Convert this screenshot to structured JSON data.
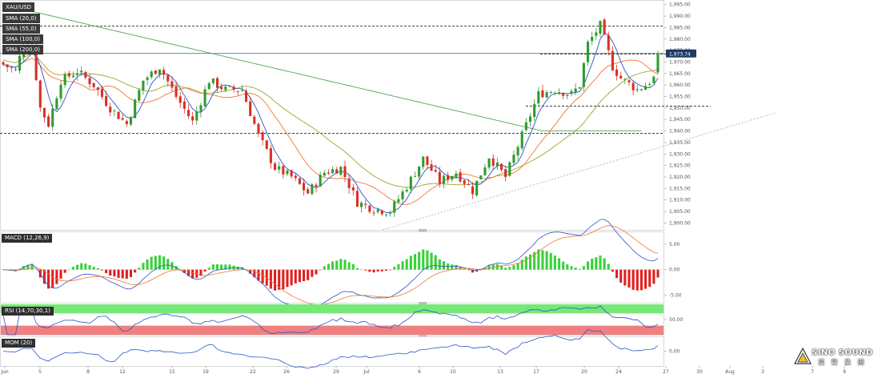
{
  "chart_data": [
    {
      "type": "candlestick",
      "panel": "price",
      "symbol": "XAU/USD",
      "ylim": [
        1897,
        1997
      ],
      "y_ticks": [
        "1,995.00",
        "1,990.00",
        "1,985.00",
        "1,980.00",
        "1,975.00",
        "1,970.00",
        "1,965.00",
        "1,960.00",
        "1,955.00",
        "1,950.00",
        "1,945.00",
        "1,940.00",
        "1,935.00",
        "1,930.00",
        "1,925.00",
        "1,920.00",
        "1,915.00",
        "1,910.00",
        "1,905.00",
        "1,900.00"
      ],
      "last_price": "1,973.74",
      "colors": {
        "up": "#2e9b2e",
        "down": "#d93025",
        "sma20": "#2a55c8",
        "sma55": "#ee7733",
        "sma100": "#a3a32a",
        "sma200": "#55a855"
      },
      "indicators": [
        {
          "name": "SMA (20,0)",
          "color": "#2a55c8"
        },
        {
          "name": "SMA (55,0)",
          "color": "#ee7733"
        },
        {
          "name": "SMA (100,0)",
          "color": "#a3a32a"
        },
        {
          "name": "SMA (200,0)",
          "color": "#55a855"
        }
      ],
      "horizontal_levels": [
        {
          "value": 1985.6,
          "style": "dashed",
          "span": "full"
        },
        {
          "value": 1973.74,
          "style": "solid",
          "span": "full"
        },
        {
          "value": 1973.5,
          "style": "dashed",
          "span": "partial"
        },
        {
          "value": 1950.8,
          "style": "dashed",
          "span": "partial"
        },
        {
          "value": 1939.0,
          "style": "dashed",
          "span": "full"
        }
      ],
      "trendline": {
        "from": [
          3000,
          1897
        ],
        "to": [
          8200,
          1948
        ],
        "style": "dotted"
      },
      "candles_note": "approximate OHLC sequence read from the plot, index 0 = left edge"
    },
    {
      "type": "histogram+line",
      "panel": "MACD",
      "title": "MACD (12,26,9)",
      "ylim": [
        -6.5,
        7.5
      ],
      "y_ticks": [
        "5.00",
        "0.00",
        "-5.00"
      ],
      "colors": {
        "pos": "#3ad13a",
        "neg": "#e02020",
        "macd": "#2a55c8",
        "signal": "#ee7733"
      }
    },
    {
      "type": "line",
      "panel": "RSI",
      "title": "RSI (14,70,30,1)",
      "ylim": [
        0,
        100
      ],
      "y_ticks": [
        "50.00"
      ],
      "bands": {
        "upper": 70,
        "lower": 30
      },
      "colors": {
        "line": "#2a55c8",
        "upper_band": "#77e877",
        "lower_band": "#f08080"
      }
    },
    {
      "type": "line",
      "panel": "MOM",
      "title": "MOM (20)",
      "ylim": [
        -40,
        40
      ],
      "y_ticks": [
        "0.00"
      ],
      "colors": {
        "line": "#2a55c8"
      }
    }
  ],
  "x_axis": {
    "labels": [
      "Jun",
      "5",
      "8",
      "12",
      "15",
      "19",
      "22",
      "26",
      "29",
      "Jul",
      "6",
      "10",
      "13",
      "17",
      "20",
      "24",
      "27",
      "30",
      "Aug",
      "3",
      "7",
      "9"
    ]
  },
  "brand": {
    "name": "SINO SOUND",
    "sub": "漢 聲 集 團"
  }
}
